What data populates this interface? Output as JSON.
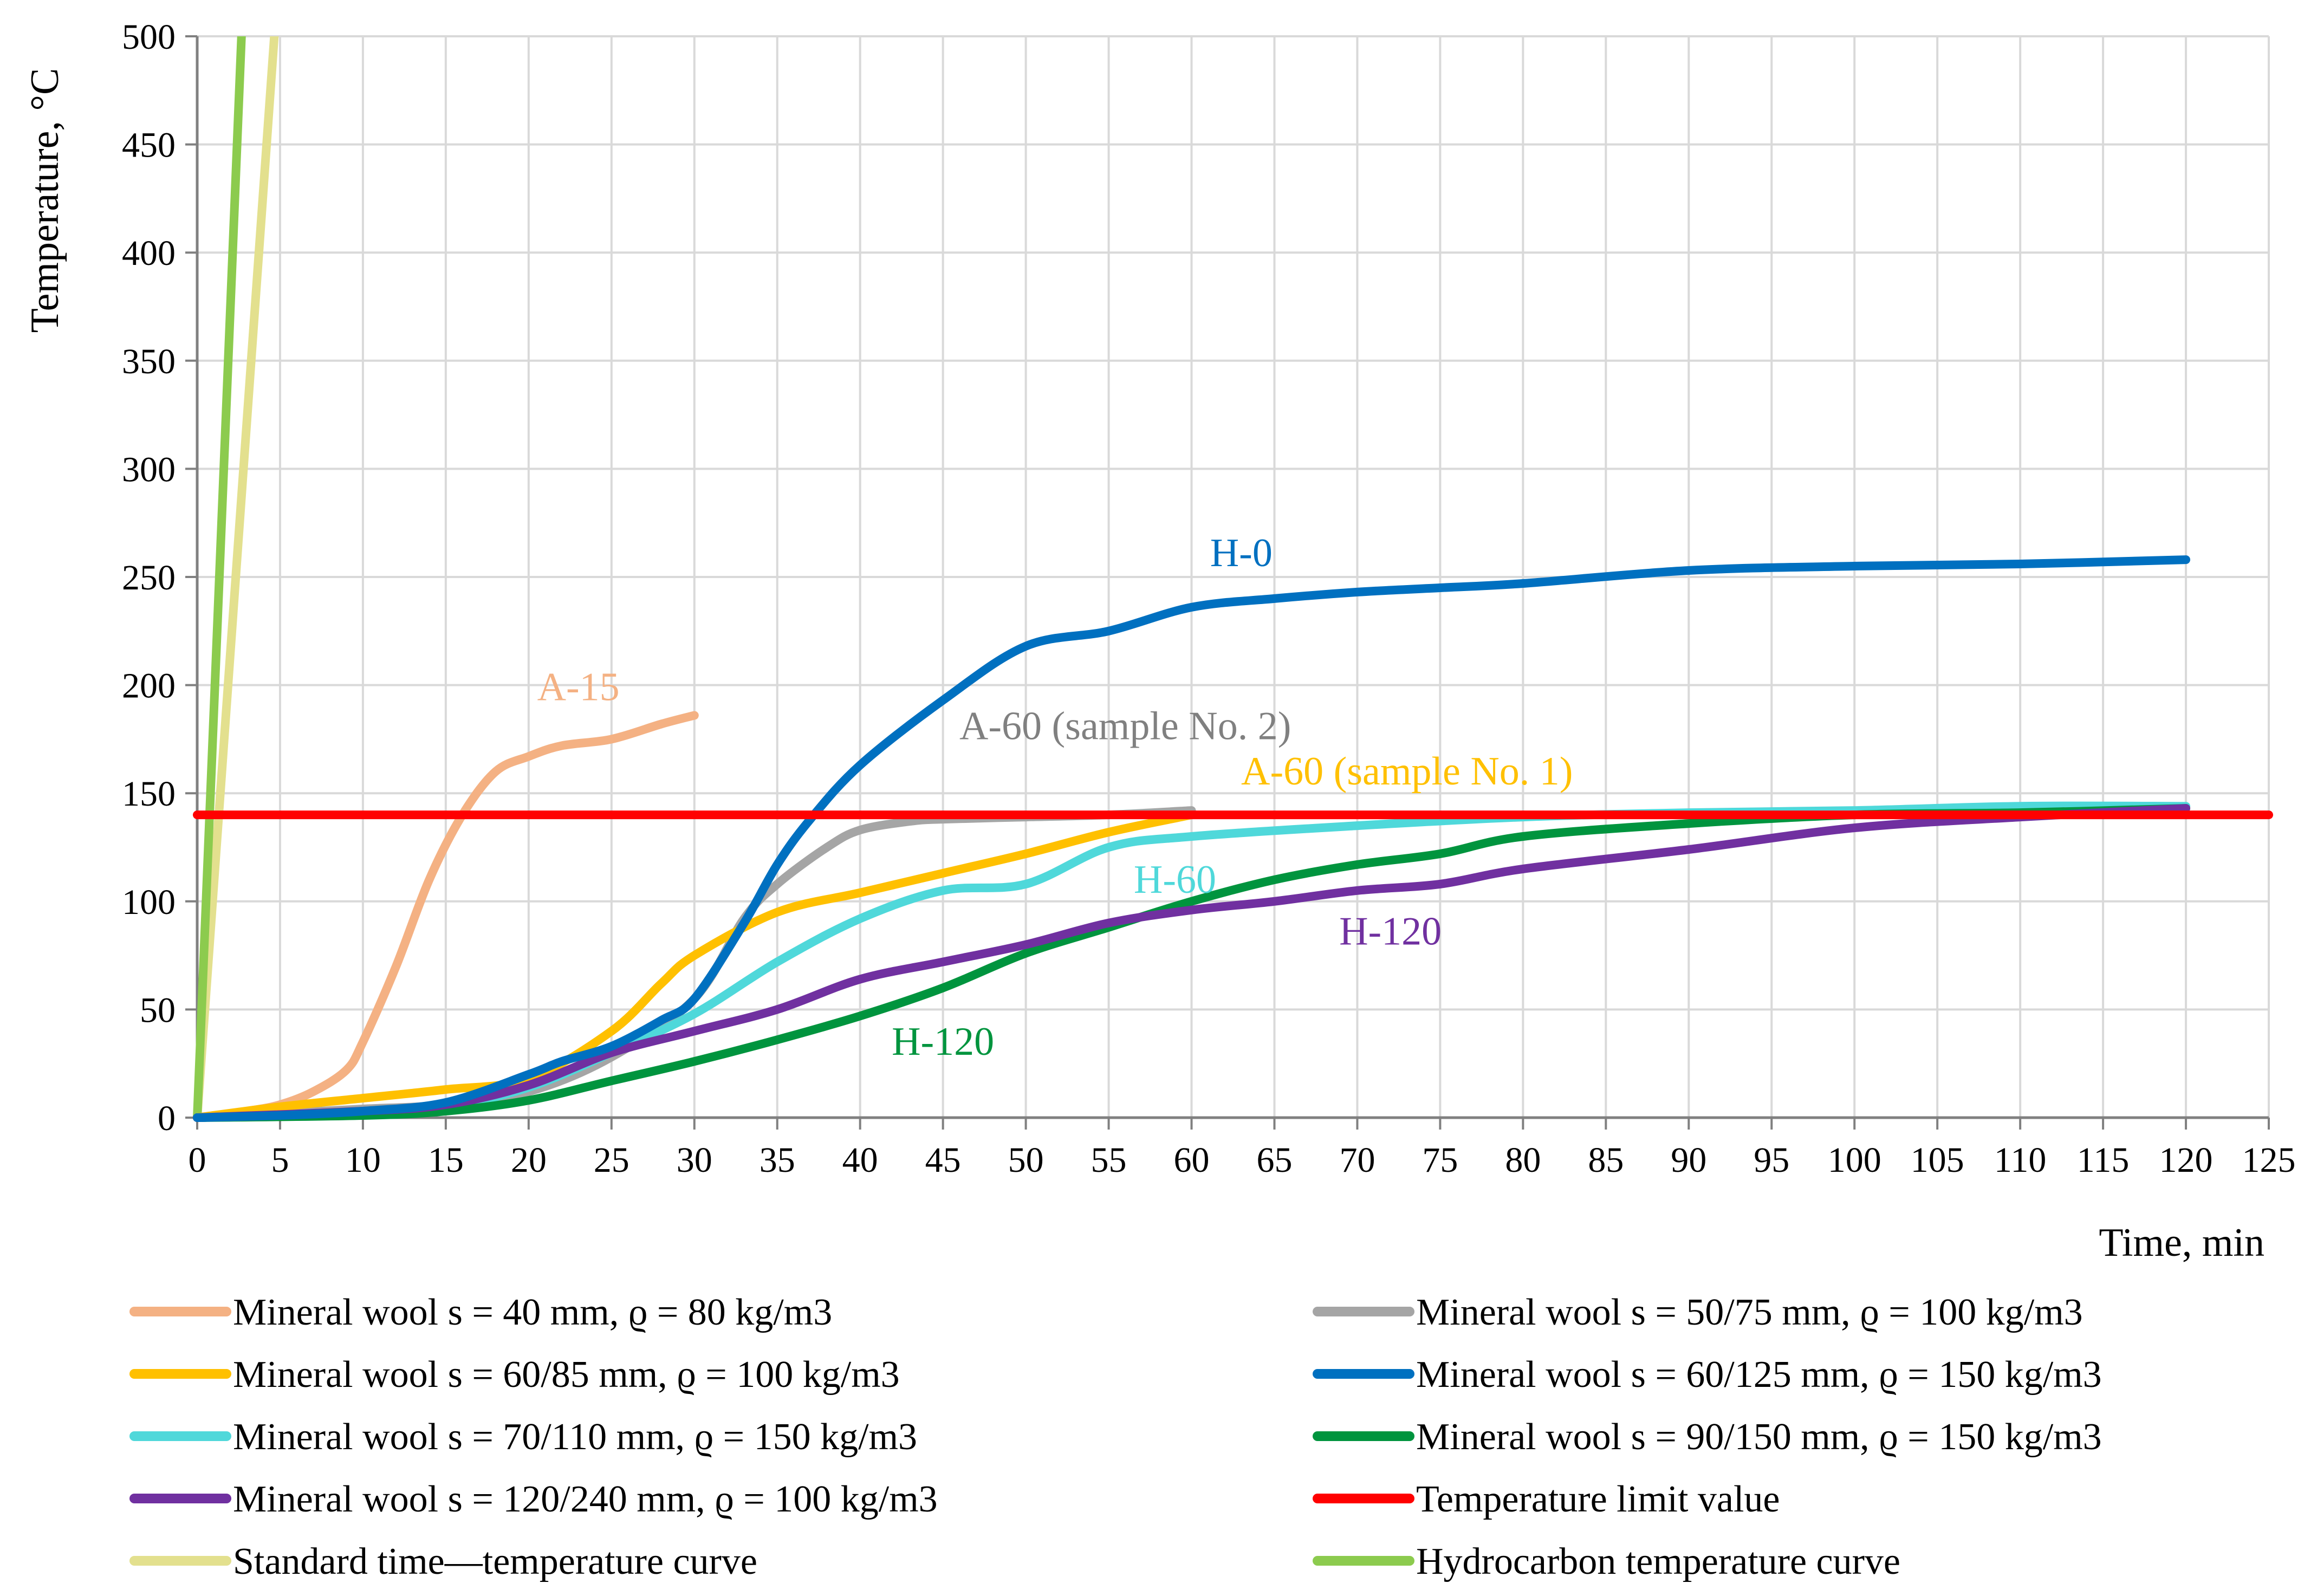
{
  "chart_data": {
    "type": "line",
    "title": "",
    "xlabel": "Time, min",
    "ylabel": "Temperature, °C",
    "xlim": [
      0,
      125
    ],
    "ylim": [
      0,
      500
    ],
    "grid": true,
    "legend_position": "bottom",
    "x_ticks": [
      "0",
      "5",
      "10",
      "15",
      "20",
      "25",
      "30",
      "35",
      "40",
      "45",
      "50",
      "55",
      "60",
      "65",
      "70",
      "75",
      "80",
      "85",
      "90",
      "95",
      "100",
      "105",
      "110",
      "115",
      "120",
      "125"
    ],
    "y_ticks": [
      "0",
      "50",
      "100",
      "150",
      "200",
      "250",
      "300",
      "350",
      "400",
      "450",
      "500"
    ],
    "series": [
      {
        "name": "Mineral wool s = 40 mm, ϱ = 80 kg/m3",
        "color": "#F4B183",
        "x": [
          0,
          3,
          5,
          7,
          9,
          10,
          12,
          14,
          16,
          18,
          20,
          22,
          25,
          28,
          30
        ],
        "y": [
          0,
          3,
          6,
          12,
          22,
          35,
          70,
          110,
          140,
          160,
          167,
          172,
          175,
          182,
          186
        ]
      },
      {
        "name": "Mineral wool s = 50/75 mm, ϱ = 100 kg/m3",
        "color": "#A5A5A5",
        "x": [
          0,
          5,
          10,
          15,
          20,
          25,
          30,
          33,
          35,
          38,
          40,
          43,
          45,
          50,
          55,
          60
        ],
        "y": [
          0,
          2,
          4,
          6,
          12,
          28,
          55,
          92,
          108,
          125,
          133,
          137,
          138,
          139,
          140,
          142
        ]
      },
      {
        "name": "Mineral wool s = 60/85 mm, ϱ = 100 kg/m3",
        "color": "#FFC000",
        "x": [
          0,
          5,
          10,
          15,
          20,
          25,
          28,
          30,
          35,
          40,
          45,
          50,
          55,
          60
        ],
        "y": [
          0,
          5,
          9,
          13,
          18,
          40,
          62,
          75,
          95,
          104,
          113,
          122,
          132,
          140
        ]
      },
      {
        "name": "Mineral wool s = 60/125 mm, ϱ = 150 kg/m3",
        "color": "#0070C0",
        "x": [
          0,
          5,
          10,
          15,
          20,
          22,
          25,
          28,
          30,
          33,
          35,
          37,
          40,
          45,
          50,
          55,
          60,
          65,
          70,
          75,
          80,
          90,
          100,
          110,
          120
        ],
        "y": [
          0,
          1,
          3,
          7,
          20,
          26,
          33,
          45,
          55,
          90,
          117,
          138,
          163,
          193,
          218,
          225,
          236,
          240,
          243,
          245,
          247,
          253,
          255,
          256,
          258
        ]
      },
      {
        "name": "Mineral wool s = 70/110 mm, ϱ = 150 kg/m3",
        "color": "#4FD8DA",
        "x": [
          0,
          10,
          15,
          20,
          25,
          30,
          35,
          40,
          45,
          50,
          55,
          60,
          70,
          80,
          90,
          100,
          110,
          120
        ],
        "y": [
          0,
          2,
          5,
          14,
          30,
          48,
          72,
          92,
          105,
          108,
          125,
          130,
          135,
          139,
          141,
          142,
          144,
          144
        ]
      },
      {
        "name": "Mineral wool s = 90/150 mm, ϱ = 150 kg/m3",
        "color": "#00943E",
        "x": [
          0,
          10,
          15,
          20,
          25,
          30,
          35,
          40,
          45,
          50,
          55,
          60,
          65,
          70,
          75,
          80,
          90,
          100,
          110,
          120
        ],
        "y": [
          0,
          1,
          3,
          8,
          17,
          26,
          36,
          47,
          60,
          76,
          88,
          100,
          110,
          117,
          122,
          130,
          136,
          140,
          141,
          143
        ]
      },
      {
        "name": "Mineral wool s = 120/240 mm, ϱ = 100 kg/m3",
        "color": "#7030A0",
        "x": [
          0,
          10,
          15,
          20,
          25,
          30,
          35,
          40,
          45,
          50,
          55,
          60,
          65,
          70,
          75,
          80,
          90,
          100,
          110,
          120
        ],
        "y": [
          0,
          3,
          6,
          15,
          30,
          40,
          50,
          64,
          72,
          80,
          90,
          96,
          100,
          105,
          108,
          115,
          124,
          134,
          139,
          143
        ]
      },
      {
        "name": "Temperature limit value",
        "color": "#FF0000",
        "x": [
          0,
          125
        ],
        "y": [
          140,
          140
        ]
      },
      {
        "name": "Standard time—temperature curve",
        "color": "#E3E08E",
        "x": [
          0,
          4.7
        ],
        "y": [
          0,
          505
        ]
      },
      {
        "name": "Hydrocarbon temperature curve",
        "color": "#8CCB4E",
        "x": [
          0,
          2.7
        ],
        "y": [
          0,
          505
        ]
      }
    ],
    "annotations": [
      {
        "text": "A-15",
        "x": 23,
        "y": 193,
        "color": "#F4B183"
      },
      {
        "text": "A-60 (sample No. 2)",
        "x": 56,
        "y": 175,
        "color": "#808080"
      },
      {
        "text": "H-0",
        "x": 63,
        "y": 255,
        "color": "#0070C0"
      },
      {
        "text": "A-60 (sample No. 1)",
        "x": 73,
        "y": 154,
        "color": "#FFC000"
      },
      {
        "text": "H-60",
        "x": 59,
        "y": 104,
        "color": "#4FD8DA"
      },
      {
        "text": "H-120",
        "x": 72,
        "y": 80,
        "color": "#7030A0"
      },
      {
        "text": "H-120",
        "x": 45,
        "y": 29,
        "color": "#00943E"
      }
    ]
  }
}
